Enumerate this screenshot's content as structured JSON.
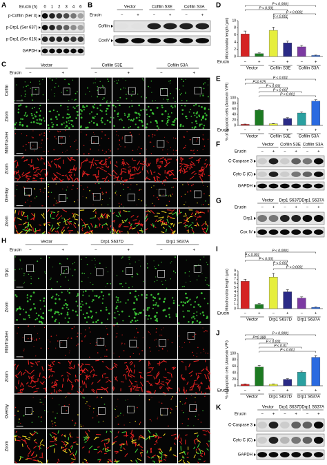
{
  "panels": {
    "A": {
      "label": "A",
      "treatment": "Erucin (h)",
      "lanes": [
        "0",
        "1",
        "2",
        "3",
        "4",
        "6"
      ],
      "rows": [
        "p-Cofilin (Ser 3)",
        "p-Drp1 (Ser 637)",
        "p-Drp1 (Ser 616)",
        "GAPDH"
      ]
    },
    "B": {
      "label": "B",
      "treatment": "Erucin",
      "groups": [
        "Vector",
        "Cofilin S3E",
        "Cofilin S3A"
      ],
      "signs": [
        "−",
        "+",
        "−",
        "+",
        "−",
        "+"
      ],
      "rows": [
        "Cofilin",
        "CoxIV"
      ]
    },
    "C": {
      "label": "C",
      "treatment": "Erucin",
      "groups": [
        "Vector",
        "Cofilin S3E",
        "Cofilin S3A"
      ],
      "signs": [
        "−",
        "+",
        "−",
        "+",
        "−",
        "+"
      ],
      "rows": [
        "Cofilin",
        "Zoom",
        "MitoTracker",
        "Zoom",
        "Overlay",
        "Zoom"
      ]
    },
    "D": {
      "label": "D",
      "type": "bar",
      "ylabel": "Mitochondria length (μm)",
      "ylim": [
        0,
        10
      ],
      "yticks": [
        0,
        2,
        4,
        6,
        8,
        10
      ],
      "treatment": "Erucin",
      "groups": [
        "Vector",
        "Cofilin S3E",
        "Cofilin S3A"
      ],
      "signs": [
        "−",
        "+",
        "−",
        "+",
        "−",
        "+"
      ],
      "values": [
        6.3,
        0.8,
        7.3,
        3.8,
        2.7,
        0.3
      ],
      "errors": [
        0.8,
        0.2,
        0.9,
        0.5,
        0.4,
        0.1
      ],
      "colors": [
        "#d42424",
        "#1d7a22",
        "#e6ee3c",
        "#2a2a86",
        "#7c3aa2",
        "#2a6ae0"
      ],
      "annotations": [
        "P < 0.0001",
        "P < 0.001",
        "P < 0.0001",
        "P < 0.001"
      ]
    },
    "E": {
      "label": "E",
      "type": "bar",
      "ylabel": "% of Apoptotic cells (Annexin V/PI)",
      "ylim": [
        0,
        100
      ],
      "yticks": [
        0,
        20,
        40,
        60,
        80,
        100
      ],
      "treatment": "Erucin",
      "groups": [
        "Vector",
        "Cofilin S3E",
        "Cofilin S3A"
      ],
      "signs": [
        "−",
        "+",
        "−",
        "+",
        "−",
        "+"
      ],
      "values": [
        4,
        55,
        6,
        25,
        45,
        88
      ],
      "errors": [
        1,
        4,
        1,
        3,
        4,
        5
      ],
      "colors": [
        "#d42424",
        "#1d7a22",
        "#e6ee3c",
        "#2a2a86",
        "#2aa0a0",
        "#2a6ae0"
      ],
      "annotations": [
        "P < 0.001",
        "P=0.575",
        "P < 0.001",
        "P < 0.001",
        "P < 0.001"
      ]
    },
    "F": {
      "label": "F",
      "treatment": "Erucin",
      "groups": [
        "Vector",
        "Cofilin S3E",
        "Cofilin S3A"
      ],
      "signs": [
        "−",
        "+",
        "−",
        "+",
        "−",
        "+"
      ],
      "rows": [
        "C-Caspase 3",
        "Cyto C (C)",
        "GAPDH"
      ]
    },
    "G": {
      "label": "G",
      "treatment": "Erucin",
      "groups": [
        "Vector",
        "Drp1 S637D",
        "Drp1 S637A"
      ],
      "signs": [
        "−",
        "+",
        "−",
        "+",
        "−",
        "+"
      ],
      "rows": [
        "Drp1",
        "Cox IV"
      ]
    },
    "H": {
      "label": "H",
      "treatment": "Erucin",
      "groups": [
        "Vector",
        "Drp1 S637D",
        "Drp1 S637A"
      ],
      "signs": [
        "−",
        "+",
        "−",
        "+",
        "−",
        "+"
      ],
      "rows": [
        "Drp1",
        "Zoom",
        "MitoTracker",
        "Zoom",
        "Overlay",
        "Zoom"
      ]
    },
    "I": {
      "label": "I",
      "type": "bar",
      "ylabel": "Mitochondria length (μm)",
      "ylim": [
        0,
        9
      ],
      "yticks": [
        0,
        1,
        2,
        3,
        4,
        5,
        6,
        7,
        8,
        9
      ],
      "treatment": "Erucin",
      "groups": [
        "Vector",
        "Drp1 S637D",
        "Drp1 S637A"
      ],
      "signs": [
        "−",
        "+",
        "−",
        "+",
        "−",
        "+"
      ],
      "values": [
        6.5,
        1,
        7.5,
        4,
        2.5,
        0.3
      ],
      "errors": [
        0.5,
        0.2,
        0.9,
        0.5,
        0.3,
        0.1
      ],
      "colors": [
        "#d42424",
        "#1d7a22",
        "#e6ee3c",
        "#2a2a86",
        "#7c3aa2",
        "#2a6ae0"
      ],
      "annotations": [
        "P < 0.0001",
        "P < 0.001",
        "P < 0.001",
        "P < 0.001",
        "P < 0.0001"
      ]
    },
    "J": {
      "label": "J",
      "type": "bar",
      "ylabel": "% of Apoptotic cells (Annexin V/PI)",
      "ylim": [
        0,
        100
      ],
      "yticks": [
        0,
        20,
        40,
        60,
        80,
        100
      ],
      "treatment": "Erucin",
      "groups": [
        "Vector",
        "Drp1 S637D",
        "Drp1 S637A"
      ],
      "signs": [
        "−",
        "+",
        "−",
        "+",
        "−",
        "+"
      ],
      "values": [
        5,
        58,
        5,
        20,
        42,
        88
      ],
      "errors": [
        1,
        5,
        1,
        2,
        3,
        5
      ],
      "colors": [
        "#d42424",
        "#1d7a22",
        "#e6ee3c",
        "#2a2a86",
        "#2aa0a0",
        "#2a6ae0"
      ],
      "annotations": [
        "P < 0.0001",
        "P=0.388",
        "P < 0.001",
        "P < 0.01",
        "P < 0.001"
      ]
    },
    "K": {
      "label": "K",
      "treatment": "Erucin",
      "groups": [
        "Vector",
        "Drp1 S637D",
        "Drp1 S637A"
      ],
      "signs": [
        "−",
        "+",
        "−",
        "+",
        "−",
        "+"
      ],
      "rows": [
        "C-Caspase 3",
        "Cyto C (C)",
        "GAPDH"
      ]
    }
  }
}
